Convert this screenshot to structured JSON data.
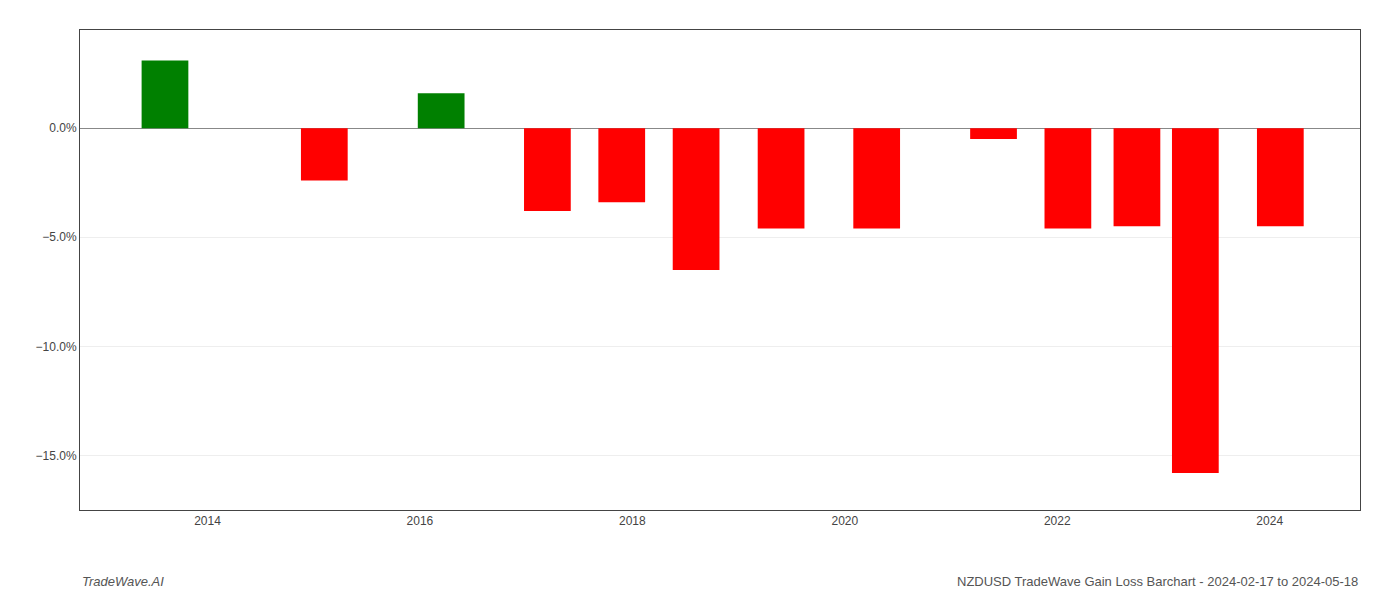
{
  "chart_data": {
    "type": "bar",
    "x": [
      2013.6,
      2015.1,
      2016.2,
      2017.2,
      2017.9,
      2018.6,
      2019.4,
      2020.3,
      2021.4,
      2022.1,
      2022.75,
      2023.3,
      2024.1
    ],
    "values": [
      3.1,
      -2.4,
      1.6,
      -3.8,
      -3.4,
      -6.5,
      -4.6,
      -4.6,
      -0.5,
      -4.6,
      -4.5,
      -15.8,
      -4.5
    ],
    "colors": [
      "#008000",
      "#ff0000",
      "#008000",
      "#ff0000",
      "#ff0000",
      "#ff0000",
      "#ff0000",
      "#ff0000",
      "#ff0000",
      "#ff0000",
      "#ff0000",
      "#ff0000",
      "#ff0000"
    ],
    "xlim": [
      2012.8,
      2024.85
    ],
    "xticks": [
      2014,
      2016,
      2018,
      2020,
      2022,
      2024
    ],
    "ylim": [
      -17.5,
      4.5
    ],
    "yticks": [
      {
        "value": 0.0,
        "label": "0.0%"
      },
      {
        "value": -5.0,
        "label": "−5.0%"
      },
      {
        "value": -10.0,
        "label": "−10.0%"
      },
      {
        "value": -15.0,
        "label": "−15.0%"
      }
    ],
    "grid": true,
    "annotations": [
      "TradeWave.AI",
      "NZDUSD TradeWave Gain Loss Barchart - 2024-02-17 to 2024-05-18"
    ]
  }
}
